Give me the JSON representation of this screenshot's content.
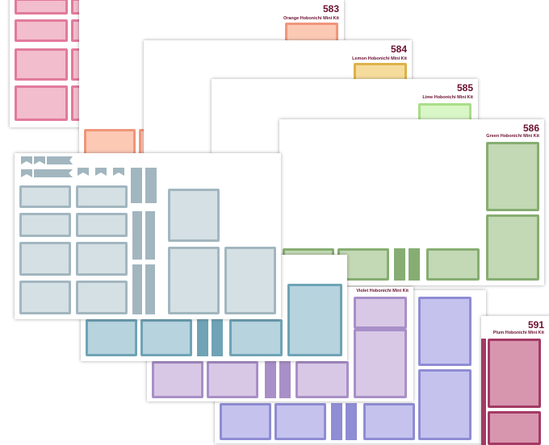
{
  "sheets": [
    {
      "id": "pink",
      "color": "#e27a9c",
      "fill": "#f2bdcd"
    },
    {
      "id": "orange",
      "number": "583",
      "label": "Orange Hobonichi Mini Kit",
      "color": "#f0967a",
      "fill": "#fcc9b5"
    },
    {
      "id": "lemon",
      "number": "584",
      "label": "Lemon Hobonichi Mini Kit",
      "color": "#ddb24a",
      "fill": "#f6dc9c"
    },
    {
      "id": "lime",
      "number": "585",
      "label": "Lime Hobonichi Mini Kit",
      "color": "#a8de88",
      "fill": "#d9f6c7"
    },
    {
      "id": "green",
      "number": "586",
      "label": "Green Hobonichi Mini Kit",
      "color": "#86ad72",
      "fill": "#c3d8b4"
    },
    {
      "id": "gray",
      "color": "#a2b6bf",
      "fill": "#d5e0e4"
    },
    {
      "id": "teal",
      "color": "#6fa3b5",
      "fill": "#b6d3de"
    },
    {
      "id": "violet",
      "label": "Violet Hobonichi Mini Kit",
      "color": "#a88fc7",
      "fill": "#d8c8e6"
    },
    {
      "id": "periwinkle",
      "color": "#8f8dd3",
      "fill": "#c5c3ee"
    },
    {
      "id": "plum",
      "number": "591",
      "label": "Plum Hobonichi Mini Kit",
      "color": "#a33a65",
      "fill": "#d796ae"
    }
  ]
}
